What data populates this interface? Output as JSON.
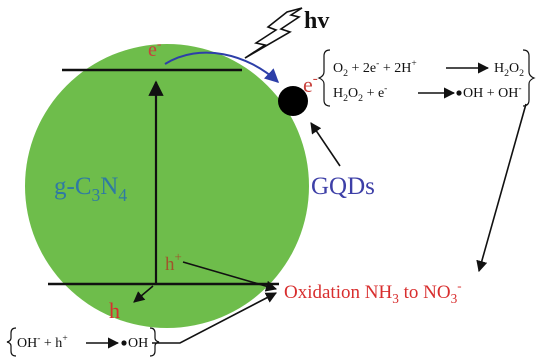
{
  "colors": {
    "sphere": "#6ebd4b",
    "ink": "#111111",
    "electron": "#c8413c",
    "hole": "#a0552c",
    "transfer_arrow": "#2d3fa8",
    "gqd_label": "#3d3fa7",
    "gcn_label": "#2f7aa3",
    "oxidation_label": "#d82e2e"
  },
  "icons": {
    "light": "lightning-bolt-icon",
    "quantum_dot": "black-dot-icon"
  },
  "excitation": {
    "label": "hv"
  },
  "sphere_label": {
    "base": "g-C",
    "sub3": "3",
    "mid": "N",
    "sub4": "4"
  },
  "electron": {
    "symbol": "e",
    "charge": "-"
  },
  "hole": {
    "symbol": "h",
    "charge": "+"
  },
  "gqd": {
    "label": "GQDs"
  },
  "reduction": {
    "eq1": {
      "o": "O",
      "o_sub": "2",
      "plus_2e": " + 2e",
      "e_sup": "-",
      "plus_2h": " + 2H",
      "h_sup": "+",
      "h": "H",
      "h_sub1": "2",
      "o2": "O",
      "h_sub2": "2"
    },
    "eq2": {
      "h": "H",
      "h_sub": "2",
      "o": "O",
      "o_sub": "2",
      "plus_e": " + e",
      "e_sup": "-",
      "product": "OH + OH",
      "oh_sup": "-"
    }
  },
  "oxidation": {
    "pre": "Oxidation NH",
    "sub3": "3",
    "mid": " to NO",
    "sub3b": "3",
    "sup": "-"
  },
  "hole_reaction": {
    "oh": "OH",
    "oh_sup": "-",
    "plus_h": " + h",
    "h_sup": "+",
    "product": "OH"
  }
}
